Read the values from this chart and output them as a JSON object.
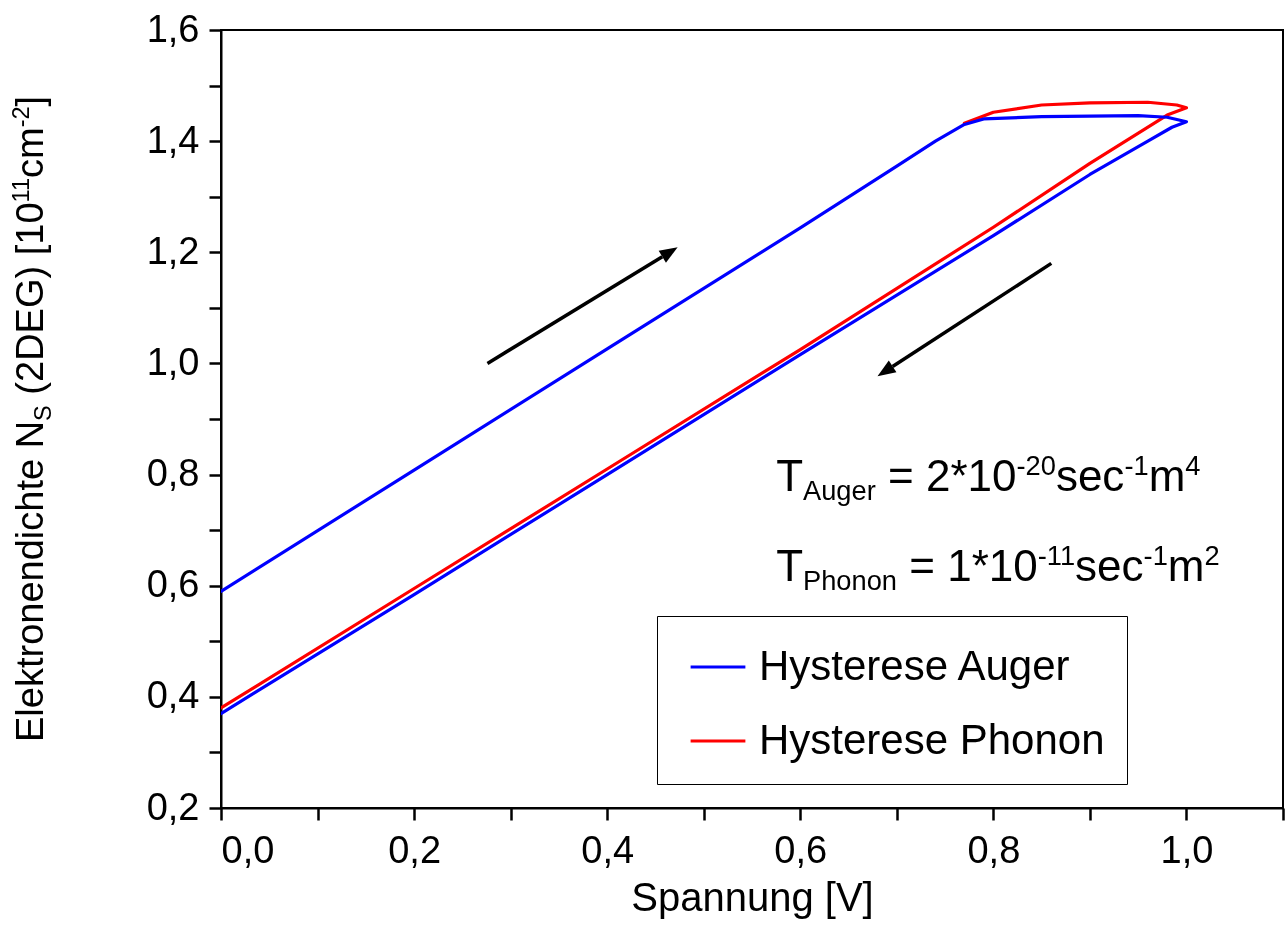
{
  "chart_data": {
    "type": "line",
    "xlabel": "Spannung [V]",
    "ylabel": "Elektronendichte N$_{S}$ (2DEG) [10$^{11}$cm$^{-2}$]",
    "xlim": [
      0,
      1.1
    ],
    "ylim": [
      0.2,
      1.6
    ],
    "xticks": [
      {
        "value": 0,
        "label": "0,0"
      },
      {
        "value": 0.1,
        "label": null
      },
      {
        "value": 0.2,
        "label": "0,2"
      },
      {
        "value": 0.3,
        "label": null
      },
      {
        "value": 0.4,
        "label": "0,4"
      },
      {
        "value": 0.5,
        "label": null
      },
      {
        "value": 0.6,
        "label": "0,6"
      },
      {
        "value": 0.7,
        "label": null
      },
      {
        "value": 0.8,
        "label": "0,8"
      },
      {
        "value": 0.9,
        "label": null
      },
      {
        "value": 1,
        "label": "1,0"
      },
      {
        "value": 1.1,
        "label": null
      }
    ],
    "yticks": [
      {
        "value": 0.2,
        "label": "0,2"
      },
      {
        "value": 0.3,
        "label": null
      },
      {
        "value": 0.4,
        "label": "0,4"
      },
      {
        "value": 0.5,
        "label": null
      },
      {
        "value": 0.6,
        "label": "0,6"
      },
      {
        "value": 0.7,
        "label": null
      },
      {
        "value": 0.8,
        "label": "0,8"
      },
      {
        "value": 0.9,
        "label": null
      },
      {
        "value": 1,
        "label": "1,0"
      },
      {
        "value": 1.1,
        "label": null
      },
      {
        "value": 1.2,
        "label": "1,2"
      },
      {
        "value": 1.3,
        "label": null
      },
      {
        "value": 1.4,
        "label": "1,4"
      },
      {
        "value": 1.5,
        "label": null
      },
      {
        "value": 1.6,
        "label": "1,6"
      }
    ],
    "legend": "bottom right",
    "grid": false,
    "marker": "none",
    "line_style": "solid",
    "annotations": [
      "T$_{Auger}$  = 2*10$^{-20}$sec$^{-1}$m$^{4}$",
      "T$_{Phonon}$ = 1*10$^{-11}$sec$^{-1}$m$^{2}$"
    ],
    "series": [
      {
        "name": "Hysterese Auger",
        "color": "#0000ff",
        "x": [
          0,
          0.2,
          0.4,
          0.6,
          0.7,
          0.74,
          0.77,
          0.79,
          0.85,
          0.95,
          0.98,
          1.0,
          0.985,
          0.96,
          0.9,
          0.8,
          0.6,
          0.4,
          0.2,
          0
        ],
        "values": [
          0.59,
          0.808,
          1.026,
          1.244,
          1.355,
          1.4,
          1.43,
          1.44,
          1.444,
          1.446,
          1.443,
          1.435,
          1.425,
          1.4,
          1.34,
          1.23,
          1.016,
          0.8,
          0.584,
          0.37
        ]
      },
      {
        "name": "Hysterese Phonon",
        "color": "#ff0000",
        "x": [
          0.77,
          0.8,
          0.85,
          0.9,
          0.96,
          0.99,
          1.0,
          0.98,
          0.9,
          0.8,
          0.6,
          0.4,
          0.2,
          0
        ],
        "values": [
          1.432,
          1.452,
          1.465,
          1.469,
          1.47,
          1.465,
          1.46,
          1.447,
          1.36,
          1.245,
          1.025,
          0.81,
          0.595,
          0.38
        ]
      }
    ]
  }
}
